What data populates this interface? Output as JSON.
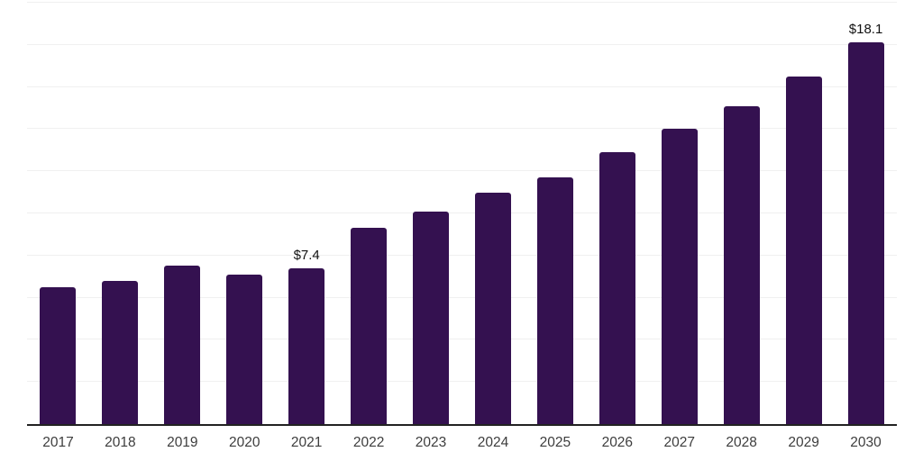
{
  "chart_data": {
    "type": "bar",
    "title": "",
    "xlabel": "",
    "ylabel": "",
    "categories": [
      "2017",
      "2018",
      "2019",
      "2020",
      "2021",
      "2022",
      "2023",
      "2024",
      "2025",
      "2026",
      "2027",
      "2028",
      "2029",
      "2030"
    ],
    "values": [
      6.5,
      6.8,
      7.5,
      7.1,
      7.4,
      9.3,
      10.1,
      11.0,
      11.7,
      12.9,
      14.0,
      15.1,
      16.5,
      18.1
    ],
    "point_labels": [
      null,
      null,
      null,
      null,
      "$7.4",
      null,
      null,
      null,
      null,
      null,
      null,
      null,
      null,
      "$18.1"
    ],
    "ylim": [
      0,
      20
    ],
    "grid_step": 2,
    "grid": true,
    "legend": false,
    "colors": {
      "bar": "#341150",
      "axis": "#222222",
      "gridline": "#f0f0f0",
      "tick_label": "#3d3d3d",
      "value_label": "#111111",
      "background": "#ffffff"
    }
  }
}
